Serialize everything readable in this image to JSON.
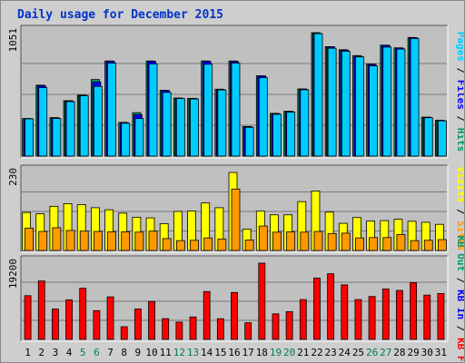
{
  "title": "Daily usage for December 2015",
  "chart_data": [
    {
      "type": "bar",
      "categories": [
        "1",
        "2",
        "3",
        "4",
        "5",
        "6",
        "7",
        "8",
        "9",
        "10",
        "11",
        "12",
        "13",
        "14",
        "15",
        "16",
        "17",
        "18",
        "19",
        "20",
        "21",
        "22",
        "23",
        "24",
        "25",
        "26",
        "27",
        "28",
        "29",
        "30",
        "31"
      ],
      "weekend_categories": [
        "5",
        "6",
        "12",
        "13",
        "19",
        "20",
        "26",
        "27"
      ],
      "ytick_label": "1051",
      "ylim": [
        0,
        1051
      ],
      "legend": [
        "Pages",
        "Files",
        "Hits"
      ],
      "series": [
        {
          "name": "Hits",
          "color": "#009966",
          "values": [
            320,
            604,
            328,
            472,
            520,
            652,
            810,
            287,
            370,
            810,
            560,
            495,
            492,
            810,
            570,
            810,
            252,
            684,
            364,
            382,
            572,
            1051,
            932,
            906,
            856,
            784,
            945,
            922,
            1010,
            332,
            305
          ]
        },
        {
          "name": "Files",
          "color": "#0000ff",
          "values": [
            319,
            600,
            325,
            470,
            517,
            632,
            808,
            285,
            353,
            806,
            558,
            492,
            490,
            806,
            567,
            806,
            250,
            682,
            362,
            380,
            570,
            1046,
            930,
            902,
            850,
            780,
            943,
            920,
            1008,
            330,
            303
          ]
        },
        {
          "name": "Pages",
          "color": "#00ccff",
          "values": [
            317,
            583,
            320,
            464,
            514,
            593,
            792,
            280,
            320,
            785,
            542,
            490,
            486,
            782,
            563,
            792,
            245,
            667,
            356,
            374,
            565,
            1043,
            918,
            893,
            845,
            768,
            928,
            911,
            1001,
            327,
            300
          ]
        }
      ]
    },
    {
      "type": "bar",
      "categories": [
        "1",
        "2",
        "3",
        "4",
        "5",
        "6",
        "7",
        "8",
        "9",
        "10",
        "11",
        "12",
        "13",
        "14",
        "15",
        "16",
        "17",
        "18",
        "19",
        "20",
        "21",
        "22",
        "23",
        "24",
        "25",
        "26",
        "27",
        "28",
        "29",
        "30",
        "31"
      ],
      "ytick_label": "230",
      "ylim": [
        0,
        230
      ],
      "legend": [
        "Visits",
        "Sites"
      ],
      "series": [
        {
          "name": "Visits",
          "color": "#ffff00",
          "values": [
            112,
            108,
            130,
            138,
            135,
            126,
            120,
            110,
            98,
            96,
            79,
            115,
            116,
            140,
            126,
            230,
            63,
            116,
            105,
            105,
            144,
            175,
            113,
            80,
            97,
            87,
            88,
            92,
            86,
            83,
            77
          ]
        },
        {
          "name": "Sites",
          "color": "#ff9900",
          "values": [
            66,
            56,
            67,
            59,
            57,
            56,
            55,
            55,
            54,
            57,
            35,
            29,
            30,
            37,
            34,
            181,
            31,
            72,
            54,
            55,
            54,
            56,
            50,
            51,
            37,
            38,
            38,
            47,
            29,
            30,
            32
          ]
        }
      ]
    },
    {
      "type": "bar",
      "categories": [
        "1",
        "2",
        "3",
        "4",
        "5",
        "6",
        "7",
        "8",
        "9",
        "10",
        "11",
        "12",
        "13",
        "14",
        "15",
        "16",
        "17",
        "18",
        "19",
        "20",
        "21",
        "22",
        "23",
        "24",
        "25",
        "26",
        "27",
        "28",
        "29",
        "30",
        "31"
      ],
      "ytick_label": "19200",
      "ylim": [
        0,
        19200
      ],
      "legend": [
        "KB Out",
        "KB In",
        "KB F"
      ],
      "series": [
        {
          "name": "KB F",
          "color": "#ff0000",
          "values": [
            11020,
            14720,
            7660,
            9970,
            12880,
            7240,
            10710,
            3200,
            7660,
            9560,
            5230,
            4360,
            5660,
            12060,
            5210,
            11820,
            4200,
            19200,
            6440,
            7000,
            10030,
            15460,
            16540,
            13740,
            10030,
            10810,
            12710,
            12340,
            14300,
            11160,
            11550
          ]
        }
      ]
    }
  ]
}
